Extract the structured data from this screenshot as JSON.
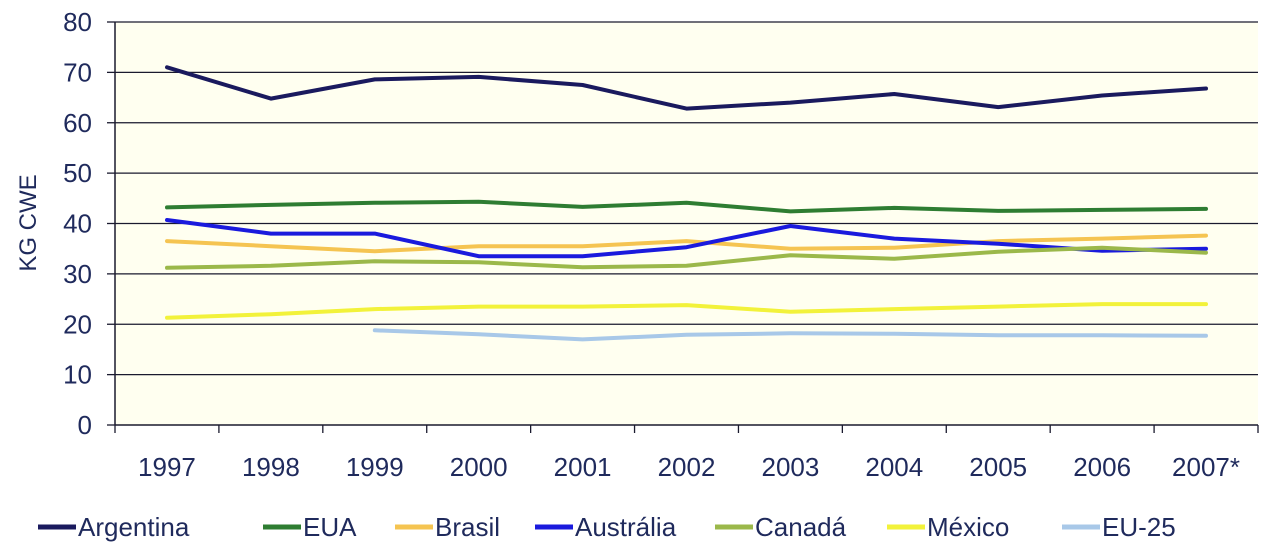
{
  "chart_data": {
    "type": "line",
    "ylabel": "KG CWE",
    "xlabel": "",
    "ylim": [
      0,
      80
    ],
    "yticks": [
      0,
      10,
      20,
      30,
      40,
      50,
      60,
      70,
      80
    ],
    "grid": "horizontal",
    "legend_position": "bottom",
    "categories": [
      "1997",
      "1998",
      "1999",
      "2000",
      "2001",
      "2002",
      "2003",
      "2004",
      "2005",
      "2006",
      "2007*"
    ],
    "series": [
      {
        "name": "Argentina",
        "color": "#1a1a5e",
        "values": [
          71,
          64.8,
          68.6,
          69.1,
          67.5,
          62.8,
          64,
          65.7,
          63.1,
          65.4,
          66.8
        ]
      },
      {
        "name": "EUA",
        "color": "#2e7d32",
        "values": [
          43.2,
          43.7,
          44.1,
          44.3,
          43.3,
          44.1,
          42.4,
          43.1,
          42.5,
          42.7,
          42.9
        ]
      },
      {
        "name": "Brasil",
        "color": "#f5c451",
        "values": [
          36.5,
          35.5,
          34.5,
          35.5,
          35.5,
          36.5,
          35,
          35.2,
          36.5,
          37,
          37.6
        ]
      },
      {
        "name": "Austrália",
        "color": "#1a1add",
        "values": [
          40.7,
          38,
          38,
          33.5,
          33.5,
          35.3,
          39.5,
          37,
          36,
          34.6,
          35
        ]
      },
      {
        "name": "Canadá",
        "color": "#9bb84a",
        "values": [
          31.2,
          31.6,
          32.5,
          32.3,
          31.3,
          31.6,
          33.7,
          33,
          34.4,
          35.2,
          34.2
        ]
      },
      {
        "name": "México",
        "color": "#f2f23a",
        "values": [
          21.3,
          22,
          23,
          23.5,
          23.5,
          23.8,
          22.5,
          23,
          23.5,
          24,
          24
        ]
      },
      {
        "name": "EU-25",
        "color": "#a8c8e8",
        "values": [
          null,
          null,
          18.8,
          18,
          17,
          17.9,
          18.2,
          18.1,
          17.8,
          17.8,
          17.7
        ]
      }
    ]
  }
}
